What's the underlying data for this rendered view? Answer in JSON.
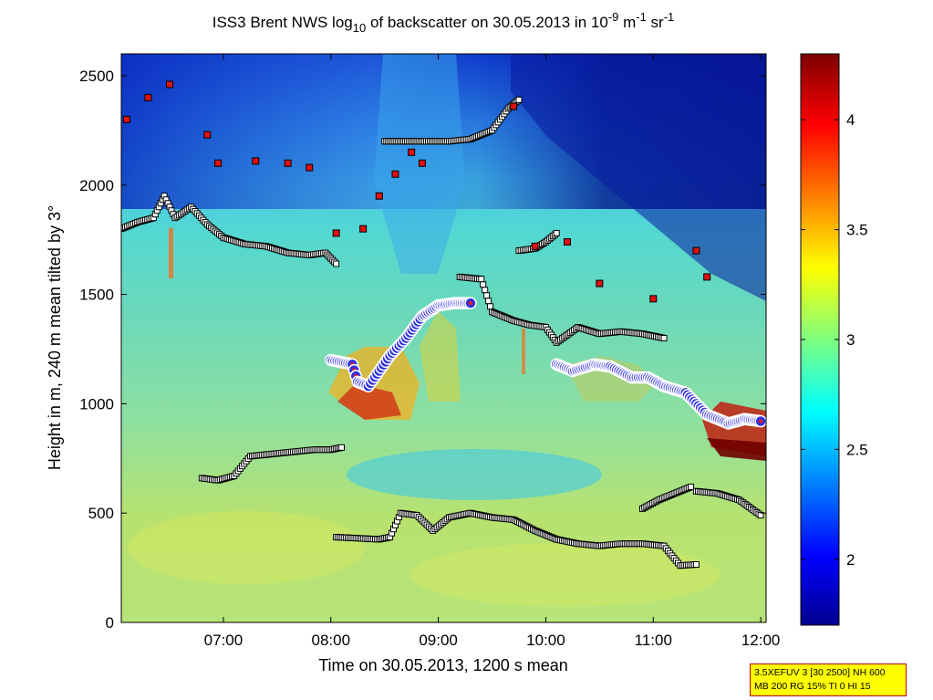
{
  "title": {
    "prefix": "ISS3 Brent NWS log",
    "prefix_sub": "10",
    "middle": " of backscatter on 30.05.2013 in 10",
    "exp1": "-9",
    "unit_m": " m",
    "exp2": "-1",
    "unit_sr": " sr",
    "exp3": "-1"
  },
  "xlabel": "Time on 30.05.2013, 1200 s mean",
  "ylabel": "Height in m, 240 m mean tilted by 3°",
  "info_box": {
    "line1": "3.5XEFUV 3 [30 2500] NH 600",
    "line2": "MB 200 RG 15% TI 0 HI 15"
  },
  "chart_data": {
    "type": "heatmap",
    "x_unit": "hours (time of day)",
    "xlim": [
      6.05,
      12.05
    ],
    "ylim": [
      0,
      2600
    ],
    "xticks": [
      {
        "value": 7,
        "label": "07:00"
      },
      {
        "value": 8,
        "label": "08:00"
      },
      {
        "value": 9,
        "label": "09:00"
      },
      {
        "value": 10,
        "label": "10:00"
      },
      {
        "value": 11,
        "label": "11:00"
      },
      {
        "value": 12,
        "label": "12:00"
      }
    ],
    "yticks": [
      0,
      500,
      1000,
      1500,
      2000,
      2500
    ],
    "colorbar": {
      "colormap": "jet",
      "range": [
        1.7,
        4.3
      ],
      "ticks": [
        2,
        2.5,
        3,
        3.5,
        4
      ]
    },
    "cloud_base_layers": [
      {
        "marker": "white square, black edge",
        "points": [
          [
            6.05,
            1800
          ],
          [
            6.2,
            1830
          ],
          [
            6.35,
            1850
          ],
          [
            6.45,
            1950
          ],
          [
            6.55,
            1850
          ],
          [
            6.7,
            1900
          ],
          [
            6.85,
            1820
          ],
          [
            7.0,
            1760
          ],
          [
            7.2,
            1730
          ],
          [
            7.4,
            1720
          ],
          [
            7.6,
            1690
          ],
          [
            7.8,
            1680
          ],
          [
            7.95,
            1690
          ],
          [
            8.05,
            1640
          ]
        ]
      },
      {
        "marker": "white square, black edge",
        "points": [
          [
            6.8,
            660
          ],
          [
            6.95,
            650
          ],
          [
            7.1,
            670
          ],
          [
            7.25,
            760
          ],
          [
            7.45,
            770
          ],
          [
            7.65,
            780
          ],
          [
            7.85,
            790
          ],
          [
            8.0,
            790
          ],
          [
            8.1,
            800
          ]
        ]
      },
      {
        "marker": "white square, black edge",
        "points": [
          [
            8.05,
            390
          ],
          [
            8.25,
            385
          ],
          [
            8.45,
            380
          ],
          [
            8.55,
            390
          ],
          [
            8.65,
            500
          ],
          [
            8.8,
            490
          ],
          [
            8.95,
            420
          ],
          [
            9.1,
            480
          ],
          [
            9.3,
            500
          ],
          [
            9.5,
            480
          ],
          [
            9.7,
            470
          ],
          [
            9.9,
            420
          ],
          [
            10.1,
            380
          ],
          [
            10.3,
            360
          ],
          [
            10.5,
            350
          ],
          [
            10.7,
            360
          ],
          [
            10.9,
            360
          ],
          [
            11.1,
            350
          ],
          [
            11.25,
            260
          ],
          [
            11.4,
            265
          ]
        ]
      },
      {
        "marker": "white square, black edge",
        "points": [
          [
            9.2,
            1580
          ],
          [
            9.4,
            1570
          ],
          [
            9.5,
            1420
          ],
          [
            9.7,
            1380
          ],
          [
            9.85,
            1360
          ],
          [
            10.0,
            1350
          ],
          [
            10.1,
            1280
          ],
          [
            10.3,
            1350
          ],
          [
            10.5,
            1320
          ],
          [
            10.7,
            1330
          ],
          [
            10.9,
            1320
          ],
          [
            11.1,
            1300
          ]
        ]
      },
      {
        "marker": "white square, black edge",
        "points": [
          [
            9.75,
            1700
          ],
          [
            9.9,
            1710
          ],
          [
            10.0,
            1740
          ],
          [
            10.1,
            1780
          ]
        ]
      },
      {
        "marker": "white square, black edge",
        "points": [
          [
            10.9,
            520
          ],
          [
            11.05,
            560
          ],
          [
            11.2,
            590
          ],
          [
            11.35,
            620
          ]
        ]
      },
      {
        "marker": "white square, black edge",
        "points": [
          [
            11.4,
            600
          ],
          [
            11.6,
            590
          ],
          [
            11.8,
            560
          ],
          [
            12.0,
            490
          ]
        ]
      },
      {
        "marker": "white square, black edge",
        "points": [
          [
            8.5,
            2200
          ],
          [
            8.8,
            2200
          ],
          [
            9.1,
            2200
          ],
          [
            9.3,
            2210
          ],
          [
            9.5,
            2250
          ],
          [
            9.65,
            2350
          ],
          [
            9.75,
            2390
          ]
        ]
      }
    ],
    "mixing_layer": {
      "marker": "red/white circle, blue edge",
      "points": [
        [
          8.0,
          1200
        ],
        [
          8.1,
          1190
        ],
        [
          8.2,
          1180
        ],
        [
          8.25,
          1100
        ],
        [
          8.35,
          1080
        ],
        [
          8.45,
          1150
        ],
        [
          8.55,
          1220
        ],
        [
          8.7,
          1300
        ],
        [
          8.85,
          1400
        ],
        [
          9.0,
          1450
        ],
        [
          9.15,
          1460
        ],
        [
          9.3,
          1460
        ],
        [
          10.1,
          1180
        ],
        [
          10.25,
          1150
        ],
        [
          10.45,
          1180
        ],
        [
          10.6,
          1170
        ],
        [
          10.8,
          1120
        ],
        [
          10.95,
          1120
        ],
        [
          11.1,
          1080
        ],
        [
          11.3,
          1050
        ],
        [
          11.5,
          950
        ],
        [
          11.7,
          910
        ],
        [
          11.85,
          930
        ],
        [
          12.0,
          920
        ]
      ]
    },
    "cloud_top_markers": {
      "marker": "red square",
      "points": [
        [
          6.1,
          2300
        ],
        [
          6.3,
          2400
        ],
        [
          6.5,
          2460
        ],
        [
          6.85,
          2230
        ],
        [
          6.95,
          2100
        ],
        [
          7.3,
          2110
        ],
        [
          7.6,
          2100
        ],
        [
          7.8,
          2080
        ],
        [
          8.05,
          1780
        ],
        [
          8.3,
          1800
        ],
        [
          8.45,
          1950
        ],
        [
          8.6,
          2050
        ],
        [
          8.75,
          2150
        ],
        [
          8.85,
          2100
        ],
        [
          9.7,
          2360
        ],
        [
          9.9,
          1720
        ],
        [
          10.2,
          1740
        ],
        [
          10.5,
          1550
        ],
        [
          11.0,
          1480
        ],
        [
          11.4,
          1700
        ],
        [
          11.5,
          1580
        ]
      ]
    }
  }
}
